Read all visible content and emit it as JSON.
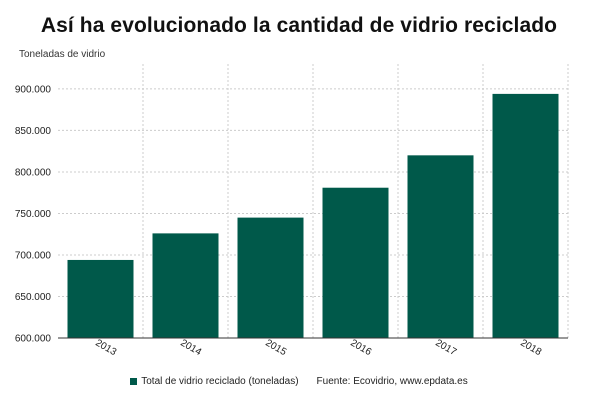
{
  "title": "Así ha evolucionado la cantidad de vidrio reciclado",
  "source": "Fuente: Ecovidrio, www.epdata.es",
  "colors": {
    "bar": "#00594a",
    "grid": "#cccccc",
    "axis": "#333333",
    "text": "#222222"
  },
  "chart_data": {
    "type": "bar",
    "title": "Así ha evolucionado la cantidad de vidrio reciclado",
    "xlabel": "",
    "ylabel": "Toneladas de vidrio",
    "categories": [
      "2013",
      "2014",
      "2015",
      "2016",
      "2017",
      "2018"
    ],
    "series": [
      {
        "name": "Total de vidrio reciclado (toneladas)",
        "values": [
          694000,
          726000,
          745000,
          781000,
          820000,
          894000
        ]
      }
    ],
    "ylim": [
      600000,
      930000
    ],
    "yticks": [
      600000,
      650000,
      700000,
      750000,
      800000,
      850000,
      900000
    ],
    "ytick_labels": [
      "600.000",
      "650.000",
      "700.000",
      "750.000",
      "800.000",
      "850.000",
      "900.000"
    ],
    "grid": true,
    "legend_position": "bottom"
  }
}
